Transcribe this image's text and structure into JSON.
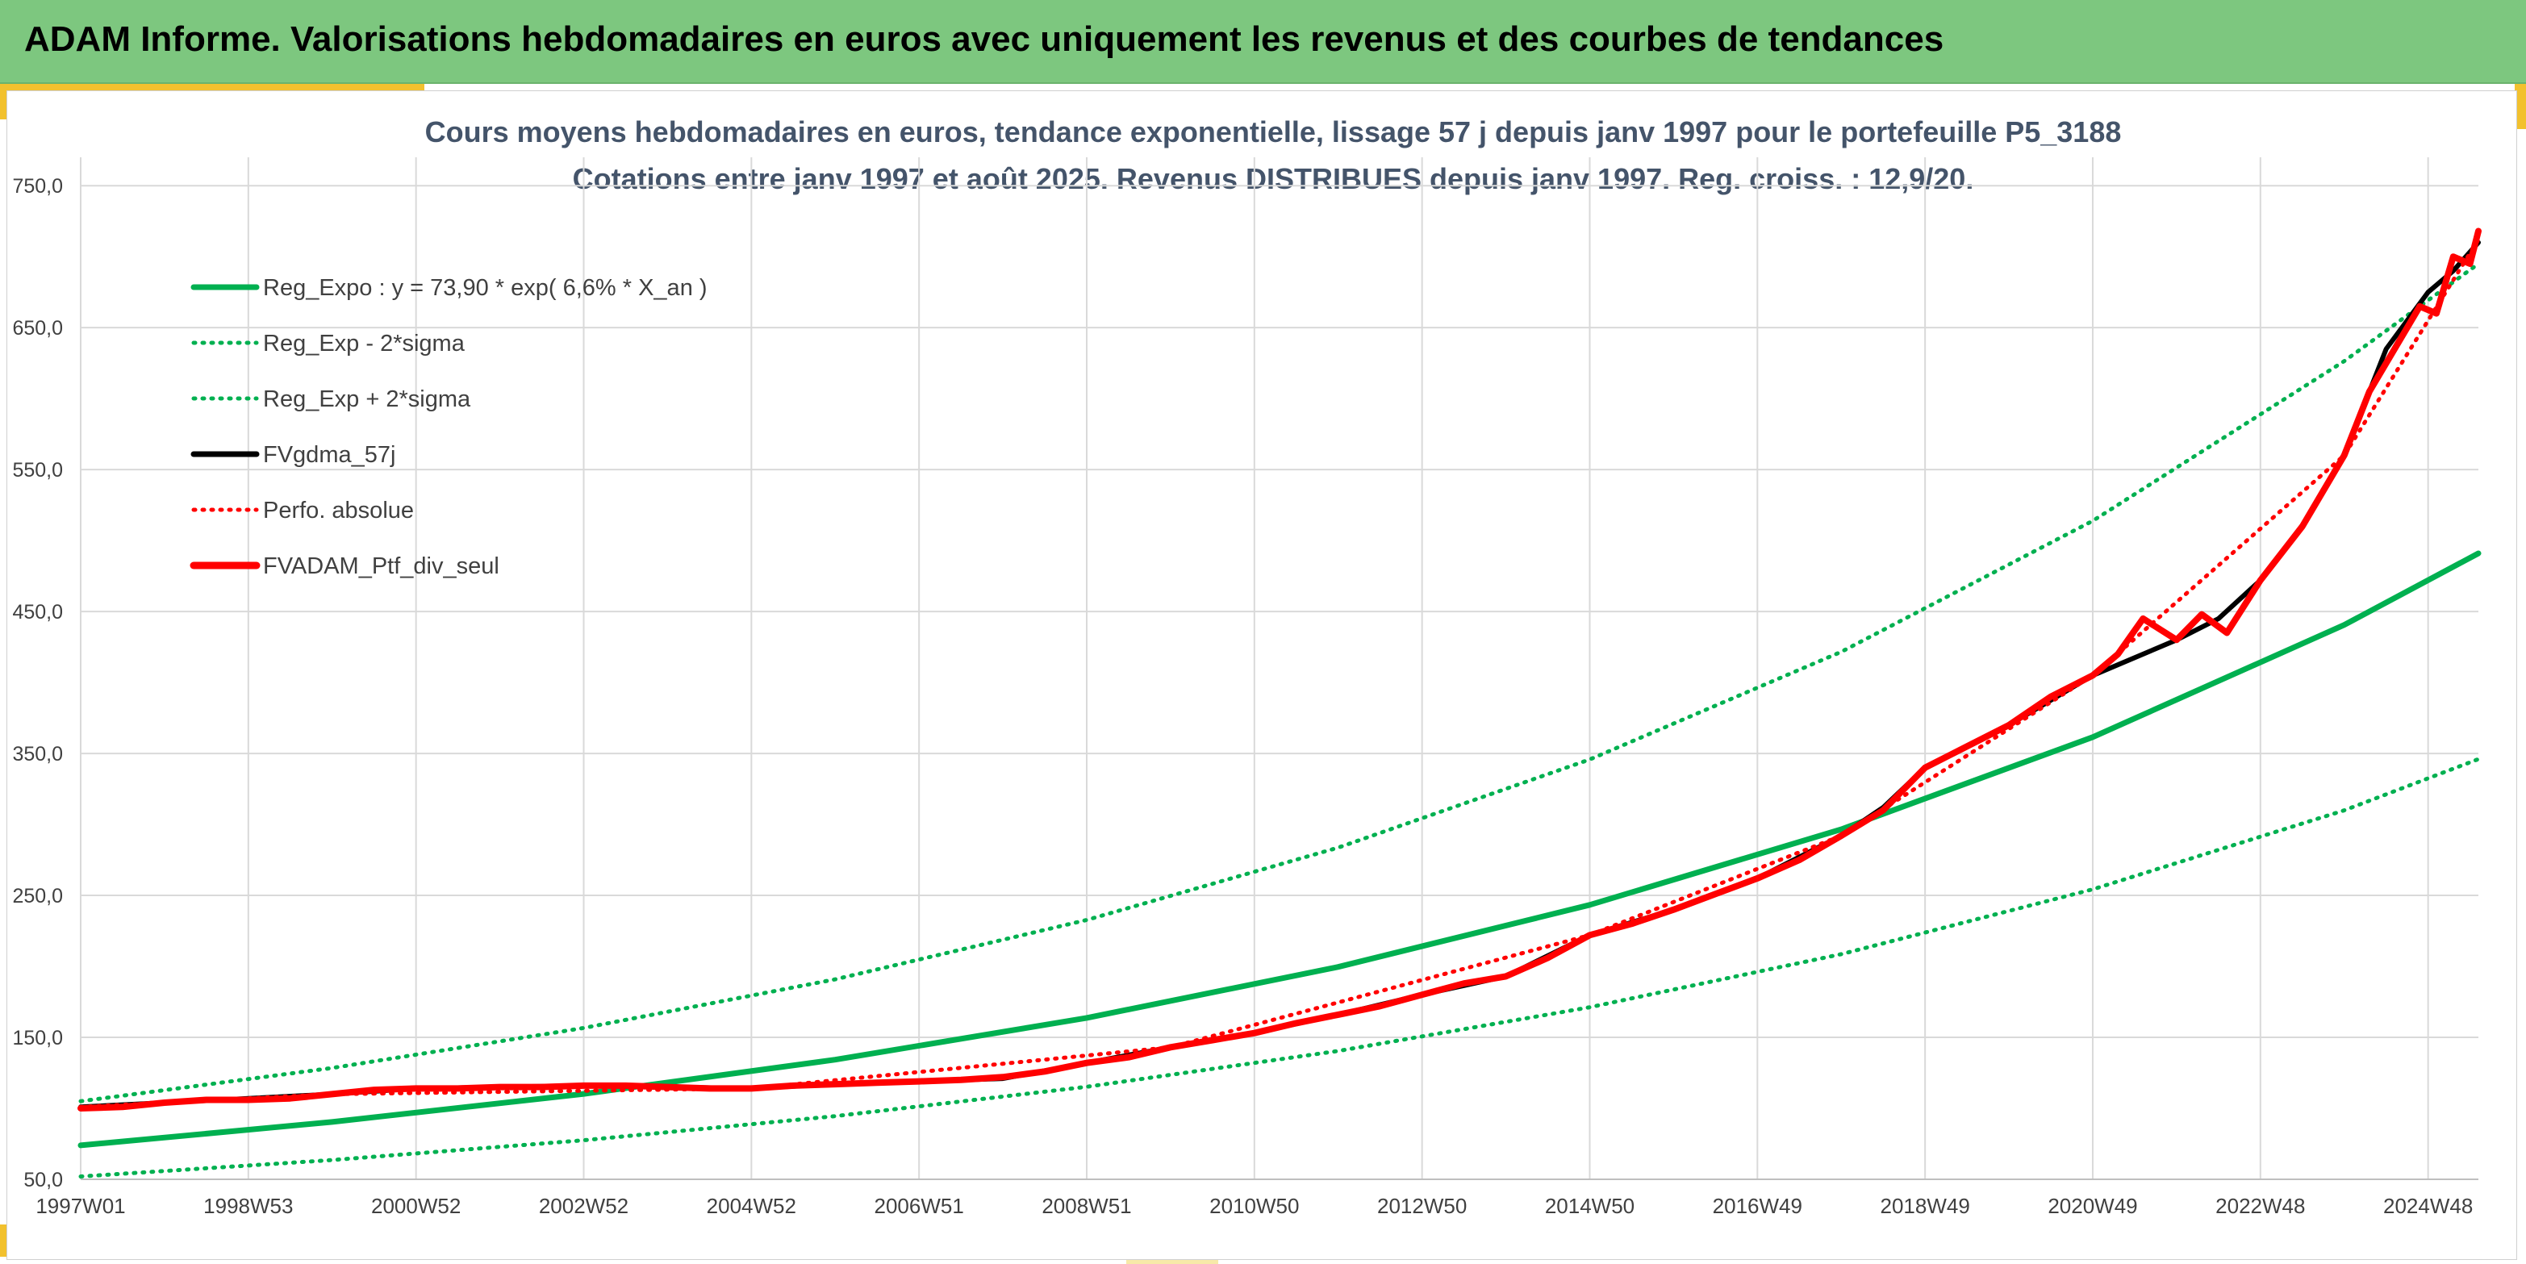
{
  "header": {
    "title": "ADAM Informe. Valorisations hebdomadaires en euros avec uniquement les revenus et des courbes de tendances"
  },
  "chart_data": {
    "type": "line",
    "title": "Cours moyens hebdomadaires en euros, tendance exponentielle, lissage 57 j depuis janv 1997 pour le portefeuille P5_3188",
    "subtitle": "Cotations entre janv 1997 et août 2025. Revenus DISTRIBUES depuis janv 1997. Reg. croiss. : 12,9/20.",
    "xlabel": "",
    "ylabel": "",
    "xlim": [
      1997.0,
      2025.6
    ],
    "ylim": [
      50,
      770
    ],
    "yticks": [
      50,
      150,
      250,
      350,
      450,
      550,
      650,
      750
    ],
    "ytick_labels": [
      "50,0",
      "150,0",
      "250,0",
      "350,0",
      "450,0",
      "550,0",
      "650,0",
      "750,0"
    ],
    "xticks": [
      1997.0,
      1999.0,
      2001.0,
      2003.0,
      2005.0,
      2007.0,
      2009.0,
      2011.0,
      2013.0,
      2015.0,
      2017.0,
      2019.0,
      2021.0,
      2023.0,
      2025.0
    ],
    "xtick_labels": [
      "1997W01",
      "1998W53",
      "2000W52",
      "2002W52",
      "2004W52",
      "2006W51",
      "2008W51",
      "2010W50",
      "2012W50",
      "2014W50",
      "2016W49",
      "2018W49",
      "2020W49",
      "2022W48",
      "2024W48"
    ],
    "grid": true,
    "legend_position": "top-left",
    "colors": {
      "trend": "#00b050",
      "gdma": "#000000",
      "ptf": "#ff0000",
      "perf": "#ff0000",
      "banner": "#7dc77f",
      "accent": "#f2c12e"
    },
    "series": [
      {
        "name": "Reg_Expo : y = 73,90 * exp( 6,6% *  X_an )",
        "style": "solid",
        "color": "#00b050",
        "x": [
          1997.0,
          2000.0,
          2003.0,
          2006.0,
          2009.0,
          2012.0,
          2015.0,
          2018.0,
          2021.0,
          2024.0,
          2025.6
        ],
        "values": [
          73.9,
          90.4,
          110.2,
          134.3,
          163.7,
          199.6,
          243.3,
          296.6,
          361.5,
          440.6,
          491.0
        ]
      },
      {
        "name": "Reg_Exp - 2*sigma",
        "style": "dotted",
        "color": "#00b050",
        "x": [
          1997.0,
          2000.0,
          2003.0,
          2006.0,
          2009.0,
          2012.0,
          2015.0,
          2018.0,
          2021.0,
          2024.0,
          2025.6
        ],
        "values": [
          52.0,
          63.6,
          77.5,
          94.5,
          115.2,
          140.4,
          171.2,
          208.6,
          254.3,
          309.9,
          346.0
        ]
      },
      {
        "name": "Reg_Exp + 2*sigma",
        "style": "dotted",
        "color": "#00b050",
        "x": [
          1997.0,
          2000.0,
          2003.0,
          2006.0,
          2009.0,
          2012.0,
          2015.0,
          2018.0,
          2021.0,
          2024.0,
          2025.6
        ],
        "values": [
          105.0,
          128.4,
          156.6,
          190.9,
          232.7,
          283.7,
          345.8,
          421.6,
          513.9,
          626.4,
          695.0
        ]
      },
      {
        "name": "FVgdma_57j",
        "style": "solid",
        "color": "#000000",
        "x": [
          1997.0,
          1998.0,
          1999.0,
          2000.0,
          2001.0,
          2002.0,
          2003.0,
          2004.0,
          2005.0,
          2006.0,
          2007.0,
          2008.0,
          2009.0,
          2010.0,
          2011.0,
          2012.0,
          2013.0,
          2014.0,
          2015.0,
          2016.0,
          2017.0,
          2018.0,
          2018.5,
          2019.0,
          2020.0,
          2021.0,
          2022.0,
          2022.5,
          2023.0,
          2023.5,
          2024.0,
          2024.5,
          2025.0,
          2025.3,
          2025.6
        ],
        "values": [
          101,
          104,
          107,
          110,
          114,
          115,
          116,
          115,
          114,
          117,
          119,
          121,
          132,
          143,
          153,
          166,
          180,
          193,
          222,
          240,
          262,
          292,
          312,
          340,
          370,
          405,
          430,
          445,
          472,
          510,
          560,
          635,
          675,
          690,
          710
        ]
      },
      {
        "name": "Perfo. absolue",
        "style": "dotted",
        "color": "#ff0000",
        "x": [
          1997.0,
          2000.0,
          2005.0,
          2010.0,
          2015.0,
          2018.0,
          2021.0,
          2024.0,
          2025.6
        ],
        "values": [
          101,
          110,
          114,
          143,
          222,
          292,
          405,
          560,
          712
        ]
      },
      {
        "name": "FVADAM_Ptf_div_seul",
        "style": "solid",
        "color": "#ff0000",
        "x": [
          1997.0,
          1997.5,
          1998.0,
          1998.5,
          1999.0,
          1999.5,
          2000.0,
          2000.5,
          2001.0,
          2001.5,
          2002.0,
          2002.5,
          2003.0,
          2003.5,
          2004.0,
          2004.5,
          2005.0,
          2005.5,
          2006.0,
          2006.5,
          2007.0,
          2007.5,
          2008.0,
          2008.5,
          2009.0,
          2009.5,
          2010.0,
          2010.5,
          2011.0,
          2011.5,
          2012.0,
          2012.5,
          2013.0,
          2013.5,
          2014.0,
          2014.5,
          2015.0,
          2015.5,
          2016.0,
          2016.5,
          2017.0,
          2017.5,
          2018.0,
          2018.5,
          2019.0,
          2019.5,
          2020.0,
          2020.5,
          2021.0,
          2021.3,
          2021.6,
          2022.0,
          2022.3,
          2022.6,
          2023.0,
          2023.5,
          2024.0,
          2024.3,
          2024.6,
          2024.9,
          2025.1,
          2025.3,
          2025.5,
          2025.6
        ],
        "values": [
          100,
          101,
          104,
          106,
          106,
          107,
          110,
          113,
          114,
          114,
          115,
          115,
          116,
          116,
          115,
          114,
          114,
          116,
          117,
          118,
          119,
          120,
          122,
          126,
          132,
          136,
          143,
          148,
          153,
          160,
          166,
          172,
          180,
          188,
          193,
          206,
          222,
          230,
          240,
          251,
          262,
          275,
          292,
          310,
          340,
          355,
          370,
          390,
          405,
          420,
          445,
          430,
          448,
          435,
          472,
          510,
          560,
          605,
          635,
          665,
          660,
          700,
          695,
          718
        ]
      }
    ]
  }
}
